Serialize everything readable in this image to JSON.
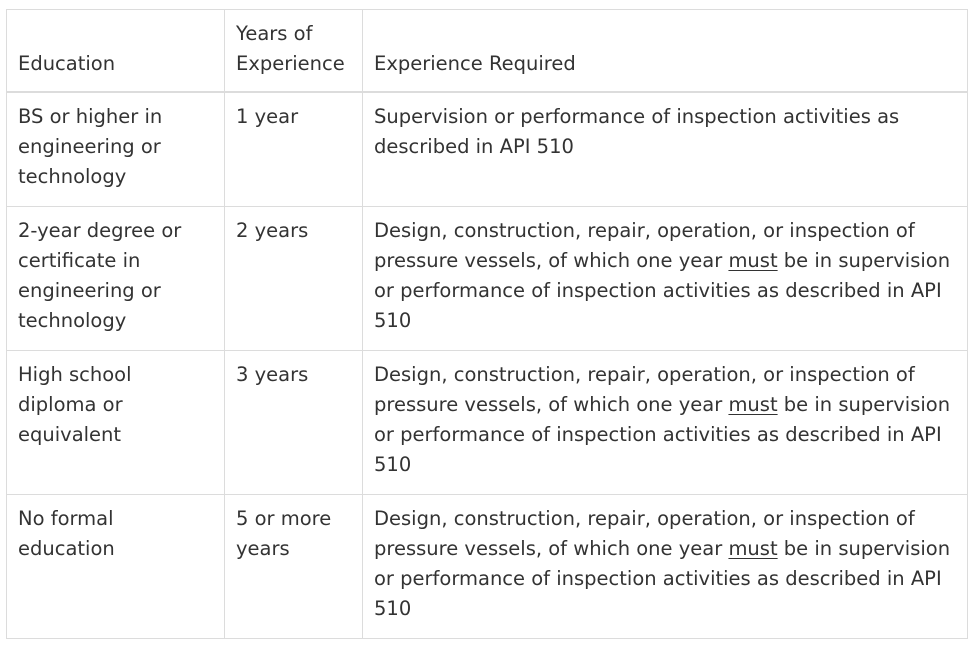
{
  "table": {
    "headers": {
      "education": "Education",
      "years": "Years of Experience",
      "required": "Experience Required"
    },
    "rows": [
      {
        "education": "BS or higher in engineering or technology",
        "years": "1 year",
        "required_plain": "Supervision or performance of inspection activities as described in API 510"
      },
      {
        "education": "2-year degree or certificate in engineering or technology",
        "years": "2 years",
        "required_before": "Design, construction, repair, operation, or inspection of pressure vessels, of which one year ",
        "required_emphasis": "must",
        "required_after": " be in supervision or performance of inspection activities as described in API 510"
      },
      {
        "education": "High school diploma or equivalent",
        "years": "3 years",
        "required_before": "Design, construction, repair, operation, or inspection of pressure vessels, of which one year ",
        "required_emphasis": "must",
        "required_after": " be in supervision or performance of inspection activities as described in API 510"
      },
      {
        "education": "No formal education",
        "years": "5 or more years",
        "required_before": "Design, construction, repair, operation, or inspection of pressure vessels, of which one year ",
        "required_emphasis": "must",
        "required_after": " be in supervision or performance of inspection activities as described in API 510"
      }
    ]
  }
}
